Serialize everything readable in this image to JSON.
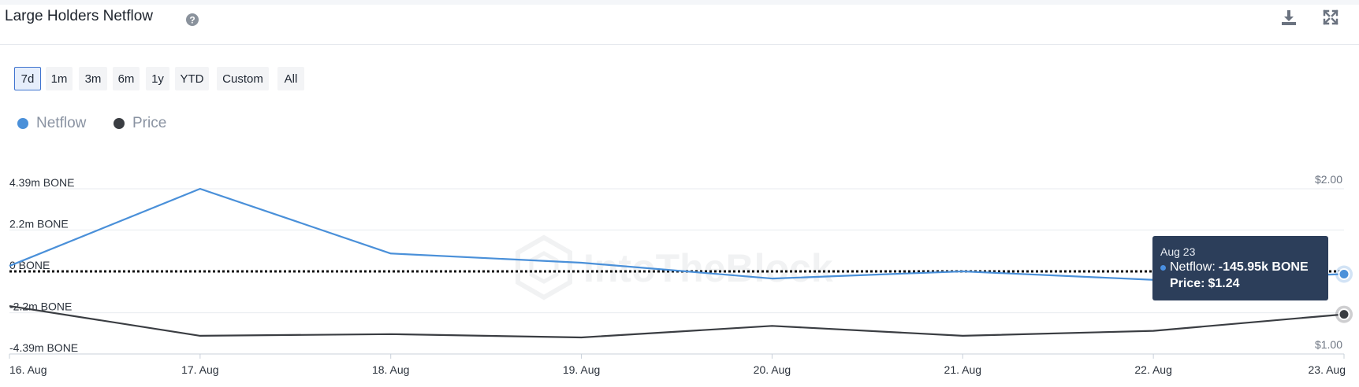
{
  "header": {
    "title": "Large Holders Netflow"
  },
  "ranges": {
    "items": [
      "7d",
      "1m",
      "3m",
      "6m",
      "1y",
      "YTD",
      "Custom",
      "All"
    ],
    "active": "7d"
  },
  "watermark": "IntoTheBlock",
  "tooltip": {
    "date": "Aug 23",
    "netflow_label": "Netflow:",
    "netflow_value": "-145.95k BONE",
    "price_label": "Price:",
    "price_value": "$1.24"
  },
  "colors": {
    "netflow": "#4a90d9",
    "price": "#3a3d42",
    "active_range_border": "#3e73cf",
    "tooltip_bg": "#2c3e5a"
  },
  "chart_data": {
    "type": "line",
    "x": [
      "16. Aug",
      "17. Aug",
      "18. Aug",
      "19. Aug",
      "20. Aug",
      "21. Aug",
      "22. Aug",
      "23. Aug"
    ],
    "series": [
      {
        "name": "Netflow",
        "axis": "left",
        "unit": "BONE",
        "values": [
          290000,
          4390000,
          950000,
          460000,
          -380000,
          0,
          -450000,
          -145950
        ]
      },
      {
        "name": "Price",
        "axis": "right",
        "unit": "$",
        "values": [
          1.29,
          1.11,
          1.12,
          1.1,
          1.17,
          1.11,
          1.14,
          1.24
        ]
      }
    ],
    "left_axis": {
      "ticks": [
        4390000,
        2200000,
        0,
        -2200000,
        -4390000
      ],
      "tick_labels": [
        "4.39m BONE",
        "2.2m BONE",
        "0 BONE",
        "-2.2m BONE",
        "-4.39m BONE"
      ],
      "range": [
        -4390000,
        4390000
      ]
    },
    "right_axis": {
      "ticks": [
        2.0,
        1.0
      ],
      "tick_labels": [
        "$2.00",
        "$1.00"
      ],
      "range": [
        1.0,
        2.0
      ]
    },
    "zero_line": "dotted",
    "grid": true,
    "legend_position": "top-left"
  }
}
